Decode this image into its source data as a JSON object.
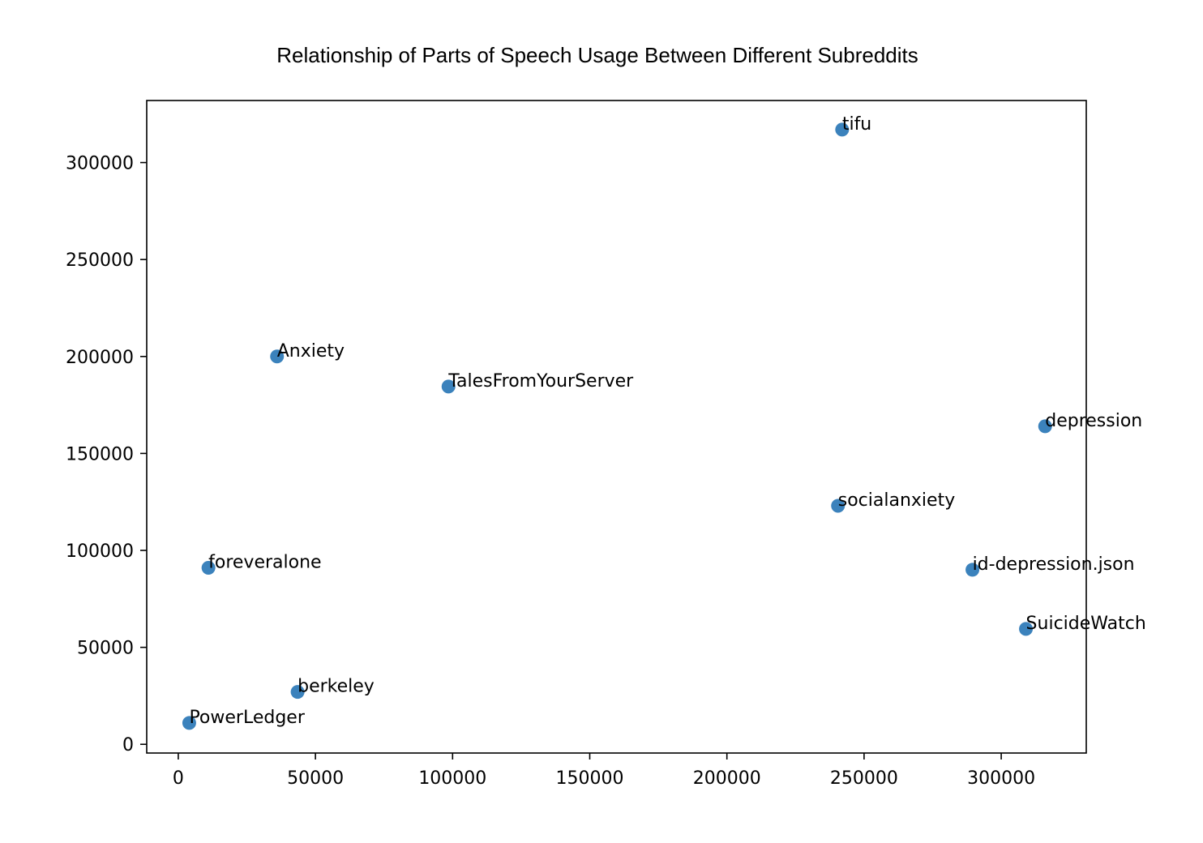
{
  "chart_data": {
    "type": "scatter",
    "title": "Relationship of Parts of Speech Usage Between Different Subreddits",
    "xlabel": "",
    "ylabel": "",
    "xlim": [
      -11500,
      331000
    ],
    "ylim": [
      -4500,
      332000
    ],
    "x_ticks": [
      0,
      50000,
      100000,
      150000,
      200000,
      250000,
      300000
    ],
    "y_ticks": [
      0,
      50000,
      100000,
      150000,
      200000,
      250000,
      300000
    ],
    "grid": false,
    "marker_color": "#3b82bc",
    "points": [
      {
        "label": "tifu",
        "x": 242000,
        "y": 317000
      },
      {
        "label": "Anxiety",
        "x": 36000,
        "y": 200000
      },
      {
        "label": "TalesFromYourServer",
        "x": 98500,
        "y": 184500
      },
      {
        "label": "depression",
        "x": 316000,
        "y": 164000
      },
      {
        "label": "socialanxiety",
        "x": 240500,
        "y": 123000
      },
      {
        "label": "foreveralone",
        "x": 11000,
        "y": 91000
      },
      {
        "label": "id-depression.json",
        "x": 289500,
        "y": 90000
      },
      {
        "label": "SuicideWatch",
        "x": 309000,
        "y": 59500
      },
      {
        "label": "berkeley",
        "x": 43500,
        "y": 27000
      },
      {
        "label": "PowerLedger",
        "x": 4000,
        "y": 11000
      }
    ]
  }
}
